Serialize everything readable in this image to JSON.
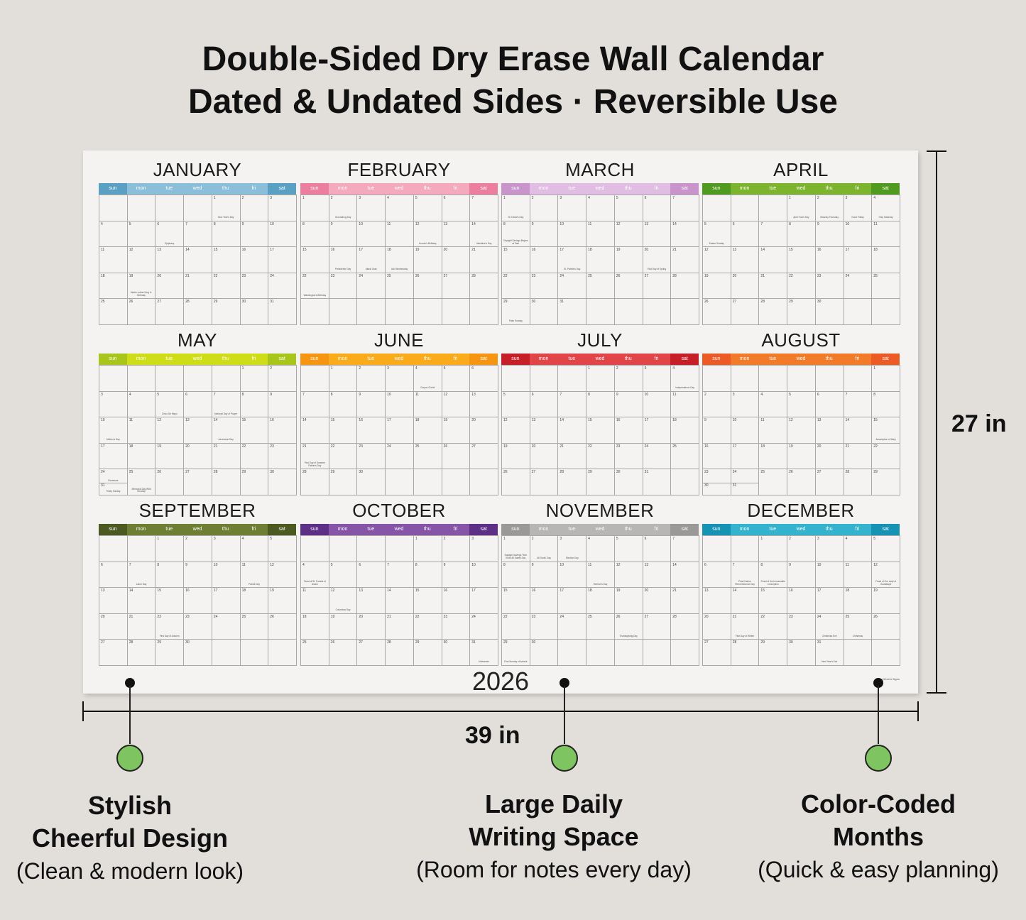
{
  "headline": {
    "line1": "Double-Sided Dry Erase Wall Calendar",
    "line2": "Dated & Undated Sides · Reversible Use"
  },
  "calendar": {
    "year": "2026",
    "brand": "Oliveira Signs",
    "weekdays": [
      "sun",
      "mon",
      "tue",
      "wed",
      "thu",
      "fri",
      "sat"
    ],
    "months": [
      {
        "name": "JANUARY",
        "color": "#8bbfd9",
        "accent": "#5aa0c4",
        "start": 4,
        "days": 31,
        "holidays": {
          "1": "New Year's Day",
          "6": "Epiphany",
          "19": "Martin Luther King Jr. Birthday"
        }
      },
      {
        "name": "FEBRUARY",
        "color": "#f4a9bd",
        "accent": "#ec7fa0",
        "start": 0,
        "days": 28,
        "holidays": {
          "2": "Groundhog Day",
          "12": "Lincoln's Birthday",
          "14": "Valentine's Day",
          "16": "Presidents' Day",
          "17": "Mardi Gras",
          "18": "Ash Wednesday",
          "22": "Washington's Birthday"
        }
      },
      {
        "name": "MARCH",
        "color": "#e2bde3",
        "accent": "#c894cb",
        "start": 0,
        "days": 31,
        "holidays": {
          "1": "St. David's Day",
          "8": "Daylight Savings Begins at 2am",
          "17": "St. Patrick's Day",
          "20": "First Day of Spring",
          "29": "Palm Sunday"
        }
      },
      {
        "name": "APRIL",
        "color": "#7cb52d",
        "accent": "#4f9a1f",
        "start": 3,
        "days": 30,
        "holidays": {
          "1": "April Fool's Day",
          "2": "Maundy Thursday",
          "3": "Good Friday",
          "4": "Holy Saturday",
          "5": "Easter Sunday"
        }
      },
      {
        "name": "MAY",
        "color": "#cfdc18",
        "accent": "#a7c51a",
        "start": 5,
        "days": 31,
        "holidays": {
          "5": "Cinco De Mayo",
          "7": "National Day of Prayer",
          "10": "Mother's Day",
          "14": "Ascension Day",
          "24": "Pentecost",
          "25": "Memorial Day Whit Monday",
          "31": "Trinity Sunday"
        }
      },
      {
        "name": "JUNE",
        "color": "#f9ab1c",
        "accent": "#f59511",
        "start": 1,
        "days": 30,
        "holidays": {
          "4": "Corpus Christi",
          "21": "First Day of Summer Father's Day"
        }
      },
      {
        "name": "JULY",
        "color": "#e24548",
        "accent": "#c61f27",
        "start": 3,
        "days": 31,
        "holidays": {
          "4": "Independence Day"
        }
      },
      {
        "name": "AUGUST",
        "color": "#f27b2a",
        "accent": "#ec5a26",
        "start": 6,
        "days": 31,
        "holidays": {
          "15": "Assumption of Mary"
        }
      },
      {
        "name": "SEPTEMBER",
        "color": "#6e7f33",
        "accent": "#4c5a22",
        "start": 2,
        "days": 30,
        "holidays": {
          "7": "Labor Day",
          "11": "Patriot Day",
          "22": "First Day of Autumn"
        }
      },
      {
        "name": "OCTOBER",
        "color": "#8755a8",
        "accent": "#5e2f86",
        "start": 4,
        "days": 31,
        "holidays": {
          "4": "Feast of St. Francis of Assisi",
          "12": "Columbus Day",
          "31": "Halloween"
        }
      },
      {
        "name": "NOVEMBER",
        "color": "#b7b6b4",
        "accent": "#9a9997",
        "start": 0,
        "days": 30,
        "holidays": {
          "1": "Daylight Savings Time Ends All Saints Day",
          "2": "All Souls' Day",
          "3": "Election Day",
          "11": "Veteran's Day",
          "26": "Thanksgiving Day",
          "29": "First Sunday of Advent"
        }
      },
      {
        "name": "DECEMBER",
        "color": "#33b3cd",
        "accent": "#1692b5",
        "start": 2,
        "days": 31,
        "holidays": {
          "7": "Pearl Harbor Remembrance Day",
          "8": "Feast of the Immaculate Conception",
          "12": "Feast of Our Lady of Guadalupe",
          "21": "First Day of Winter",
          "24": "Christmas Eve",
          "25": "Christmas",
          "31": "New Year's Eve"
        }
      }
    ]
  },
  "dimensions": {
    "height": "27 in",
    "width": "39 in"
  },
  "features": [
    {
      "title1": "Stylish",
      "title2": "Cheerful Design",
      "sub": "(Clean & modern look)"
    },
    {
      "title1": "Large Daily",
      "title2": "Writing Space",
      "sub": "(Room for notes every day)"
    },
    {
      "title1": "Color-Coded",
      "title2": "Months",
      "sub": "(Quick & easy planning)"
    }
  ],
  "colors": {
    "background": "#e2dfdb",
    "dot_green": "#7ec460"
  }
}
